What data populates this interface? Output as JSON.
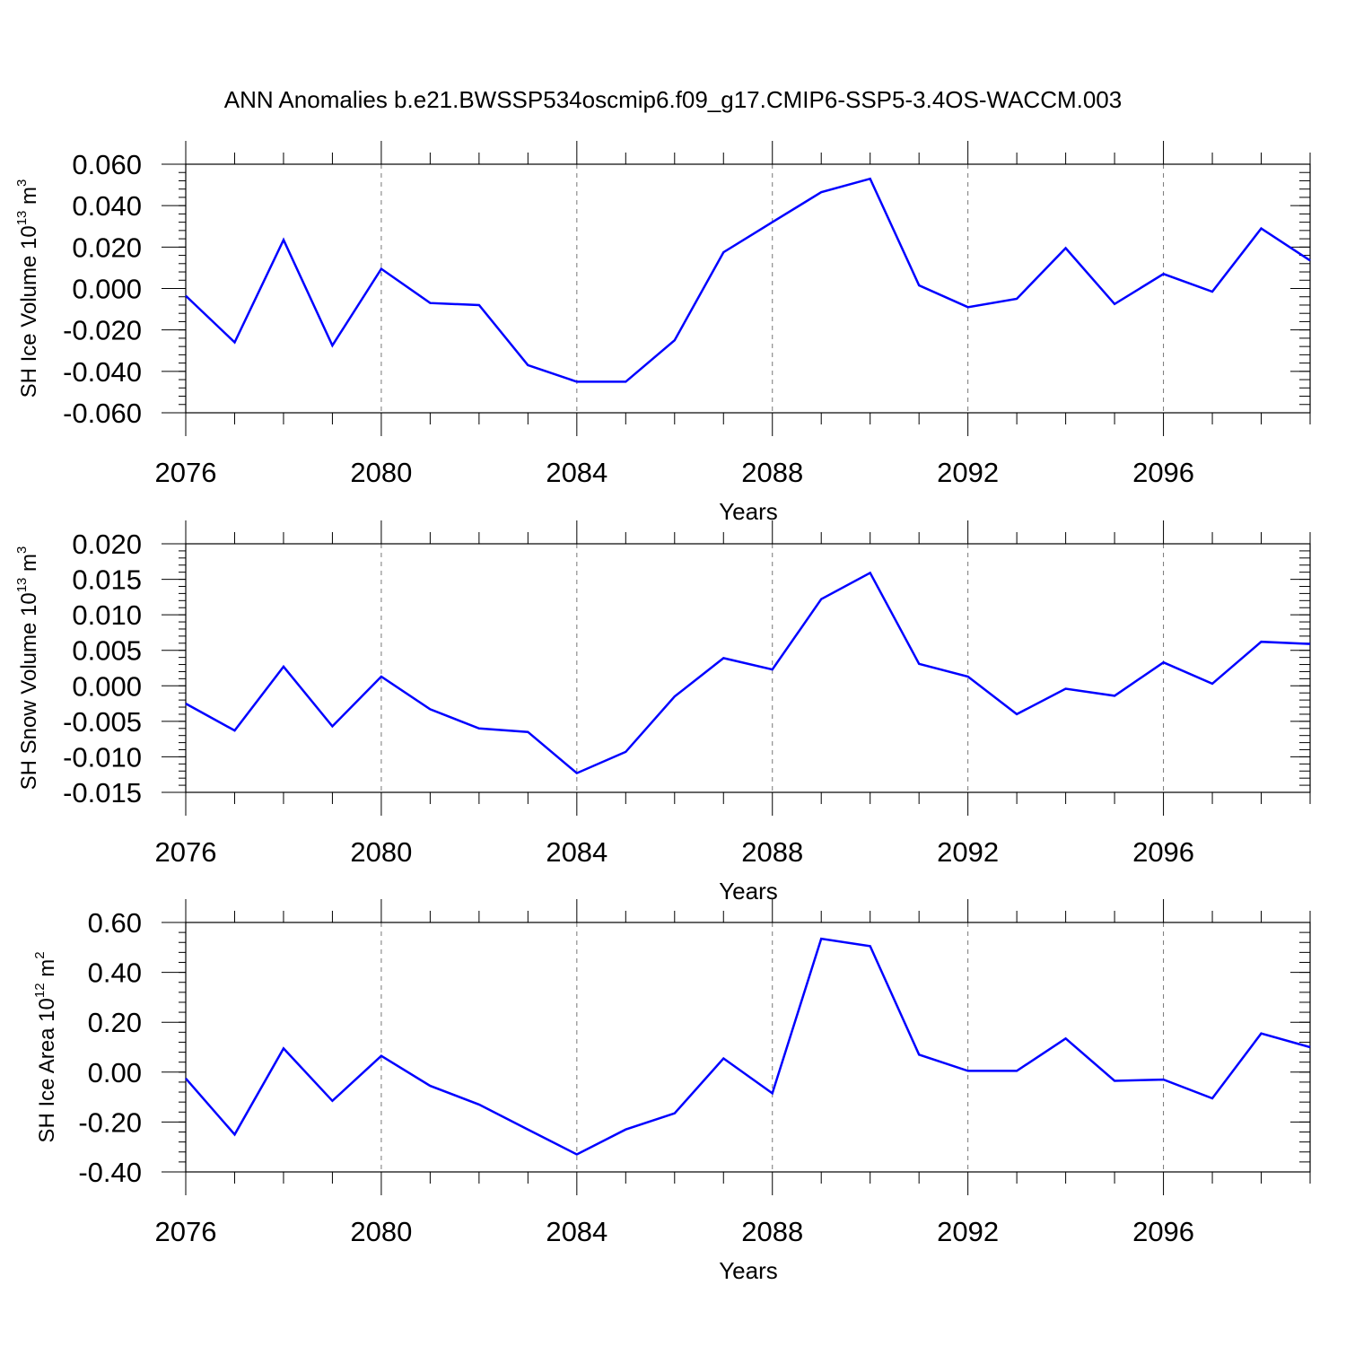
{
  "title": "ANN Anomalies b.e21.BWSSP534oscmip6.f09_g17.CMIP6-SSP5-3.4OS-WACCM.003",
  "colors": {
    "series": "#0000ff",
    "axis": "#000000",
    "grid": "#777777"
  },
  "chart_data": [
    {
      "type": "line",
      "ylabel": {
        "text": "SH Ice Volume 10",
        "sup": "13",
        "unit": " m",
        "unit_sup": "3"
      },
      "xlabel": "Years",
      "xlim": [
        2076,
        2099
      ],
      "ylim": [
        -0.06,
        0.06
      ],
      "yticks": [
        -0.06,
        -0.04,
        -0.02,
        0.0,
        0.02,
        0.04,
        0.06
      ],
      "ytick_labels": [
        "-0.060",
        "-0.040",
        "-0.020",
        "0.000",
        "0.020",
        "0.040",
        "0.060"
      ],
      "yminor_step": 0.004,
      "xticks": [
        2076,
        2080,
        2084,
        2088,
        2092,
        2096
      ],
      "xtick_labels": [
        "2076",
        "2080",
        "2084",
        "2088",
        "2092",
        "2096"
      ],
      "x": [
        2076,
        2077,
        2078,
        2079,
        2080,
        2081,
        2082,
        2083,
        2084,
        2085,
        2086,
        2087,
        2088,
        2089,
        2090,
        2091,
        2092,
        2093,
        2094,
        2095,
        2096,
        2097,
        2098,
        2099
      ],
      "values": [
        -0.0035,
        -0.026,
        0.0235,
        -0.0275,
        0.0095,
        -0.007,
        -0.008,
        -0.037,
        -0.045,
        -0.045,
        -0.025,
        0.0175,
        0.032,
        0.0465,
        0.053,
        0.0015,
        -0.009,
        -0.005,
        0.0195,
        -0.0075,
        0.007,
        -0.0015,
        0.029,
        0.0135
      ]
    },
    {
      "type": "line",
      "ylabel": {
        "text": "SH Snow Volume 10",
        "sup": "13",
        "unit": " m",
        "unit_sup": "3"
      },
      "xlabel": "Years",
      "xlim": [
        2076,
        2099
      ],
      "ylim": [
        -0.015,
        0.02
      ],
      "yticks": [
        -0.015,
        -0.01,
        -0.005,
        0.0,
        0.005,
        0.01,
        0.015,
        0.02
      ],
      "ytick_labels": [
        "-0.015",
        "-0.010",
        "-0.005",
        "0.000",
        "0.005",
        "0.010",
        "0.015",
        "0.020"
      ],
      "yminor_step": 0.001,
      "xticks": [
        2076,
        2080,
        2084,
        2088,
        2092,
        2096
      ],
      "xtick_labels": [
        "2076",
        "2080",
        "2084",
        "2088",
        "2092",
        "2096"
      ],
      "x": [
        2076,
        2077,
        2078,
        2079,
        2080,
        2081,
        2082,
        2083,
        2084,
        2085,
        2086,
        2087,
        2088,
        2089,
        2090,
        2091,
        2092,
        2093,
        2094,
        2095,
        2096,
        2097,
        2098,
        2099
      ],
      "values": [
        -0.0025,
        -0.0063,
        0.0027,
        -0.0057,
        0.0013,
        -0.0033,
        -0.006,
        -0.0065,
        -0.0123,
        -0.0093,
        -0.0015,
        0.0039,
        0.0023,
        0.0122,
        0.0159,
        0.0031,
        0.0013,
        -0.004,
        -0.0004,
        -0.0014,
        0.0033,
        0.0003,
        0.0062,
        0.0059
      ]
    },
    {
      "type": "line",
      "ylabel": {
        "text": "SH Ice Area 10",
        "sup": "12",
        "unit": " m",
        "unit_sup": "2"
      },
      "xlabel": "Years",
      "xlim": [
        2076,
        2099
      ],
      "ylim": [
        -0.4,
        0.6
      ],
      "yticks": [
        -0.4,
        -0.2,
        0.0,
        0.2,
        0.4,
        0.6
      ],
      "ytick_labels": [
        "-0.40",
        "-0.20",
        "0.00",
        "0.20",
        "0.40",
        "0.60"
      ],
      "yminor_step": 0.04,
      "xticks": [
        2076,
        2080,
        2084,
        2088,
        2092,
        2096
      ],
      "xtick_labels": [
        "2076",
        "2080",
        "2084",
        "2088",
        "2092",
        "2096"
      ],
      "x": [
        2076,
        2077,
        2078,
        2079,
        2080,
        2081,
        2082,
        2083,
        2084,
        2085,
        2086,
        2087,
        2088,
        2089,
        2090,
        2091,
        2092,
        2093,
        2094,
        2095,
        2096,
        2097,
        2098,
        2099
      ],
      "values": [
        -0.025,
        -0.25,
        0.095,
        -0.115,
        0.065,
        -0.055,
        -0.13,
        -0.23,
        -0.33,
        -0.23,
        -0.165,
        0.055,
        -0.085,
        0.535,
        0.505,
        0.07,
        0.005,
        0.005,
        0.135,
        -0.035,
        -0.03,
        -0.105,
        0.155,
        0.1
      ]
    }
  ]
}
